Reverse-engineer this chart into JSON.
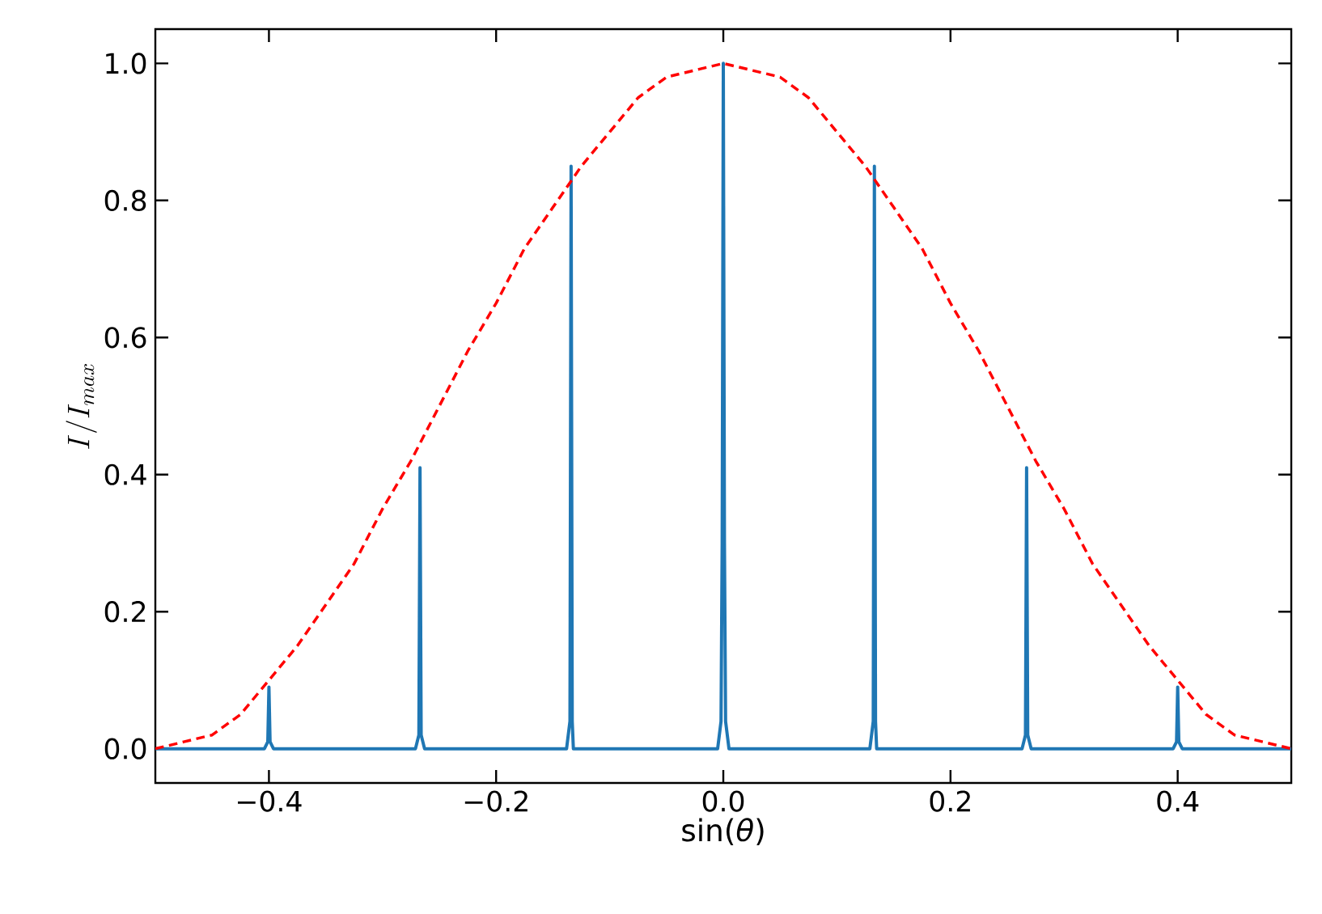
{
  "chart_data": {
    "type": "line",
    "xlabel": "sin(*θ*)",
    "ylabel": "I/I_{max}",
    "xlim": [
      -0.5,
      0.5
    ],
    "ylim": [
      -0.05,
      1.05
    ],
    "xticks": [
      {
        "value": -0.4,
        "label": "−0.4"
      },
      {
        "value": -0.2,
        "label": "−0.2"
      },
      {
        "value": 0,
        "label": "0.0"
      },
      {
        "value": 0.2,
        "label": "0.2"
      },
      {
        "value": 0.4,
        "label": "0.4"
      }
    ],
    "yticks": [
      {
        "value": 0,
        "label": "0.0"
      },
      {
        "value": 0.2,
        "label": "0.2"
      },
      {
        "value": 0.4,
        "label": "0.4"
      },
      {
        "value": 0.6,
        "label": "0.6"
      },
      {
        "value": 0.8,
        "label": "0.8"
      },
      {
        "value": 1.0,
        "label": "1.0"
      }
    ],
    "grid": false,
    "series": [
      {
        "color": "#1f77b4",
        "line_style": "solid",
        "x": [
          -0.5,
          -0.404,
          -0.401,
          -0.4,
          -0.399,
          -0.396,
          -0.271,
          -0.268,
          -0.267,
          -0.266,
          -0.263,
          -0.138,
          -0.135,
          -0.134,
          -0.133,
          -0.132,
          -0.129,
          -0.005,
          -0.002,
          -0.001,
          0,
          0.001,
          0.002,
          0.005,
          0.129,
          0.132,
          0.133,
          0.134,
          0.135,
          0.138,
          0.263,
          0.266,
          0.267,
          0.268,
          0.271,
          0.396,
          0.399,
          0.4,
          0.401,
          0.404,
          0.5
        ],
        "values": [
          0,
          0,
          0.01,
          0.09,
          0.01,
          0,
          0,
          0.02,
          0.41,
          0.02,
          0,
          0,
          0.04,
          0.85,
          0.04,
          0,
          0,
          0,
          0.04,
          0.3,
          1.0,
          0.3,
          0.04,
          0,
          0,
          0.04,
          0.85,
          0.04,
          0,
          0,
          0,
          0.02,
          0.41,
          0.02,
          0,
          0,
          0.01,
          0.09,
          0.01,
          0,
          0
        ]
      },
      {
        "color": "#ff0000",
        "line_style": "dashed",
        "x": [
          -0.5,
          -0.475,
          -0.45,
          -0.425,
          -0.4,
          -0.375,
          -0.35,
          -0.325,
          -0.3,
          -0.275,
          -0.25,
          -0.225,
          -0.2,
          -0.175,
          -0.15,
          -0.125,
          -0.1,
          -0.075,
          -0.05,
          -0.025,
          0,
          0.025,
          0.05,
          0.075,
          0.1,
          0.125,
          0.15,
          0.175,
          0.2,
          0.225,
          0.25,
          0.275,
          0.3,
          0.325,
          0.35,
          0.375,
          0.4,
          0.425,
          0.45,
          0.475,
          0.5
        ],
        "values": [
          0,
          0.01,
          0.02,
          0.05,
          0.1,
          0.15,
          0.21,
          0.27,
          0.35,
          0.42,
          0.5,
          0.58,
          0.65,
          0.73,
          0.79,
          0.85,
          0.9,
          0.95,
          0.98,
          0.99,
          1.0,
          0.99,
          0.98,
          0.95,
          0.9,
          0.85,
          0.79,
          0.73,
          0.65,
          0.58,
          0.5,
          0.42,
          0.35,
          0.27,
          0.21,
          0.15,
          0.1,
          0.05,
          0.02,
          0.01,
          0
        ]
      }
    ]
  }
}
